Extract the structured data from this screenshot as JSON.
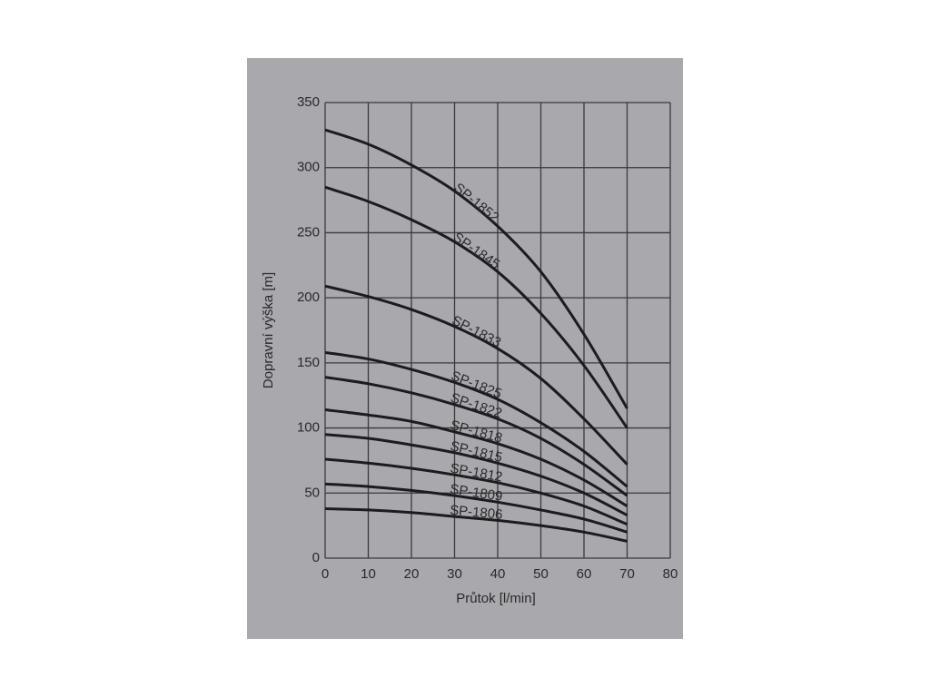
{
  "chart_data": {
    "type": "line",
    "x_label": "Průtok [l/min]",
    "y_label": "Dopravní výška [m]",
    "x": [
      0,
      10,
      20,
      30,
      40,
      50,
      60,
      70
    ],
    "xlim": [
      0,
      80
    ],
    "xticks": [
      0,
      10,
      20,
      30,
      40,
      50,
      60,
      70,
      80
    ],
    "ylim": [
      0,
      350
    ],
    "yticks": [
      0,
      50,
      100,
      150,
      200,
      250,
      300,
      350
    ],
    "grid": true,
    "series": [
      {
        "name": "SP-1852",
        "color": "#1c1c20",
        "values": [
          329,
          318,
          302,
          282,
          255,
          220,
          172,
          115
        ]
      },
      {
        "name": "SP-1845",
        "color": "#1c1c20",
        "values": [
          285,
          274,
          260,
          243,
          220,
          188,
          148,
          100
        ]
      },
      {
        "name": "SP-1833",
        "color": "#1c1c20",
        "values": [
          209,
          201,
          191,
          178,
          161,
          138,
          107,
          72
        ]
      },
      {
        "name": "SP-1825",
        "color": "#1c1c20",
        "values": [
          158,
          153,
          145,
          135,
          122,
          104,
          82,
          55
        ]
      },
      {
        "name": "SP-1822",
        "color": "#1c1c20",
        "values": [
          139,
          134,
          127,
          118,
          107,
          92,
          72,
          48
        ]
      },
      {
        "name": "SP-1818",
        "color": "#1c1c20",
        "values": [
          114,
          110,
          105,
          97,
          88,
          76,
          60,
          40
        ]
      },
      {
        "name": "SP-1815",
        "color": "#1c1c20",
        "values": [
          95,
          92,
          87,
          81,
          73,
          63,
          50,
          33
        ]
      },
      {
        "name": "SP-1812",
        "color": "#1c1c20",
        "values": [
          76,
          73,
          69,
          64,
          58,
          50,
          40,
          26
        ]
      },
      {
        "name": "SP-1809",
        "color": "#1c1c20",
        "values": [
          57,
          55,
          52,
          48,
          43,
          37,
          30,
          20
        ]
      },
      {
        "name": "SP-1806",
        "color": "#1c1c20",
        "values": [
          38,
          37,
          35,
          32,
          29,
          25,
          20,
          13
        ]
      }
    ]
  }
}
